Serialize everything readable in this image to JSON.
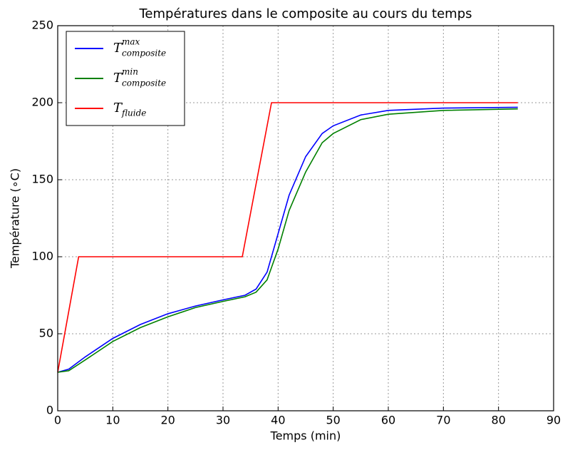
{
  "chart_data": {
    "type": "line",
    "title": "Températures dans le composite au cours du temps",
    "xlabel": "Temps (min)",
    "ylabel": "Température (∘C)",
    "xlim": [
      0,
      90
    ],
    "ylim": [
      0,
      250
    ],
    "xticks": [
      0,
      10,
      20,
      30,
      40,
      50,
      60,
      70,
      80,
      90
    ],
    "yticks": [
      0,
      50,
      100,
      150,
      200,
      250
    ],
    "grid": true,
    "legend": "upper left",
    "series": [
      {
        "name": "T",
        "sup": "max",
        "sub": "composite",
        "color": "#0000ff",
        "x": [
          0,
          2,
          5,
          10,
          15,
          20,
          25,
          30,
          34,
          36,
          38,
          40,
          42,
          45,
          48,
          50,
          55,
          60,
          70,
          83.5
        ],
        "values": [
          25,
          27,
          35,
          47,
          56,
          63,
          68,
          72,
          75,
          79,
          90,
          115,
          140,
          165,
          180,
          185,
          192,
          195,
          196.5,
          197
        ]
      },
      {
        "name": "T",
        "sup": "min",
        "sub": "composite",
        "color": "#008000",
        "x": [
          0,
          2,
          5,
          10,
          15,
          20,
          25,
          30,
          34,
          36,
          38,
          40,
          42,
          45,
          48,
          50,
          55,
          60,
          70,
          83.5
        ],
        "values": [
          25,
          26,
          33,
          45,
          54,
          61,
          67,
          71,
          74,
          77,
          85,
          105,
          130,
          155,
          174,
          180,
          189,
          192.5,
          195,
          196
        ]
      },
      {
        "name": "T",
        "sub": "fluide",
        "color": "#ff0000",
        "x": [
          0,
          3.8,
          33.5,
          38.8,
          83.5
        ],
        "values": [
          25,
          100,
          100,
          200,
          200
        ]
      }
    ]
  }
}
